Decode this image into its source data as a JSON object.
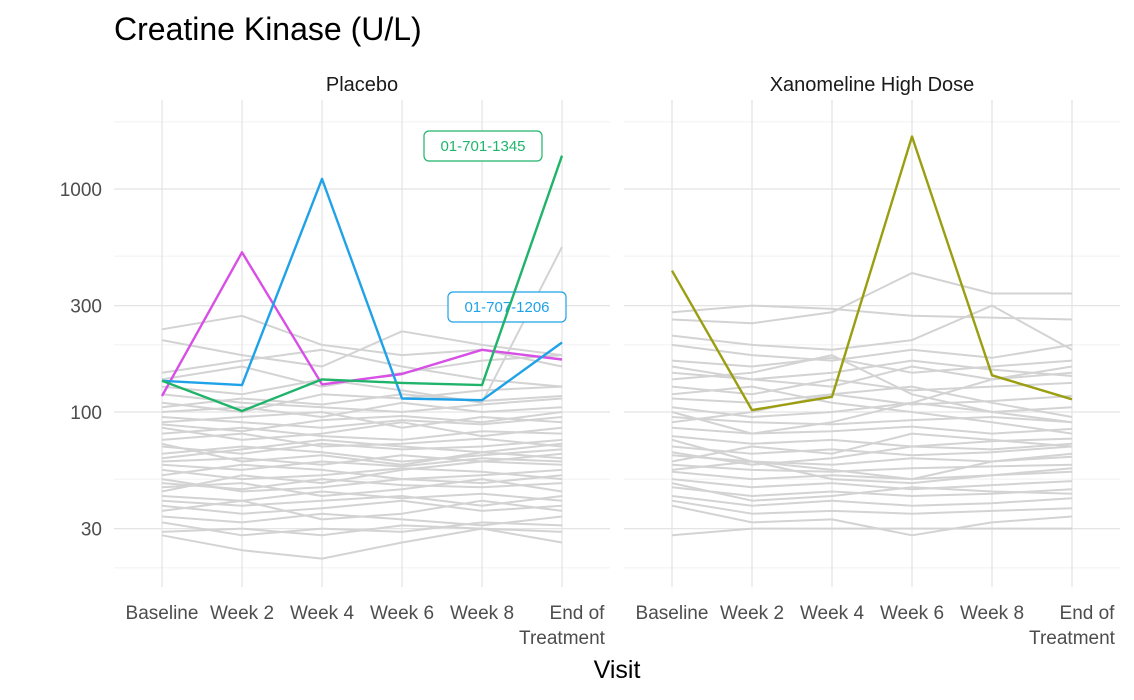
{
  "chart_data": {
    "type": "line",
    "title": "Creatine Kinase (U/L)",
    "xlabel": "Visit",
    "ylabel": "",
    "yscale": "log",
    "ylim": [
      20,
      2000
    ],
    "yticks": [
      30,
      100,
      300,
      1000
    ],
    "ytick_labels": [
      "30",
      "100",
      "300",
      "1000"
    ],
    "categories": [
      "Baseline",
      "Week 2",
      "Week 4",
      "Week 6",
      "Week 8",
      "End of Treatment"
    ],
    "grid": true,
    "panels": [
      {
        "name": "Placebo",
        "background_series": [
          {
            "values": [
              120,
              110,
              105,
              100,
              108,
              115
            ]
          },
          {
            "values": [
              95,
              90,
              85,
              92,
              88,
              95
            ]
          },
          {
            "values": [
              80,
              85,
              78,
              75,
              82,
              80
            ]
          },
          {
            "values": [
              70,
              65,
              72,
              68,
              70,
              75
            ]
          },
          {
            "values": [
              60,
              62,
              58,
              64,
              60,
              58
            ]
          },
          {
            "values": [
              55,
              50,
              52,
              56,
              54,
              50
            ]
          },
          {
            "values": [
              48,
              45,
              50,
              47,
              46,
              48
            ]
          },
          {
            "values": [
              42,
              40,
              44,
              41,
              43,
              40
            ]
          },
          {
            "values": [
              38,
              35,
              37,
              40,
              36,
              38
            ]
          },
          {
            "values": [
              34,
              32,
              35,
              33,
              31,
              34
            ]
          },
          {
            "values": [
              29,
              30,
              28,
              31,
              30,
              29
            ]
          },
          {
            "values": [
              28,
              24,
              22,
              26,
              30,
              26
            ]
          },
          {
            "values": [
              235,
              270,
              200,
              180,
              190,
              160
            ]
          },
          {
            "values": [
              210,
              180,
              160,
              230,
              200,
              180
            ]
          },
          {
            "values": [
              150,
              170,
              190,
              160,
              140,
              130
            ]
          },
          {
            "values": [
              140,
              160,
              130,
              150,
              170,
              180
            ]
          },
          {
            "values": [
              130,
              120,
              140,
              125,
              110,
              550
            ]
          },
          {
            "values": [
              110,
              100,
              120,
              115,
              125,
              130
            ]
          },
          {
            "values": [
              100,
              105,
              95,
              110,
              100,
              105
            ]
          },
          {
            "values": [
              90,
              95,
              100,
              85,
              95,
              90
            ]
          },
          {
            "values": [
              85,
              75,
              80,
              90,
              78,
              85
            ]
          },
          {
            "values": [
              75,
              80,
              70,
              72,
              76,
              70
            ]
          },
          {
            "values": [
              65,
              70,
              66,
              60,
              64,
              68
            ]
          },
          {
            "values": [
              58,
              55,
              60,
              57,
              62,
              60
            ]
          },
          {
            "values": [
              52,
              58,
              55,
              50,
              52,
              55
            ]
          },
          {
            "values": [
              46,
              48,
              42,
              45,
              50,
              44
            ]
          },
          {
            "values": [
              40,
              38,
              40,
              42,
              38,
              42
            ]
          },
          {
            "values": [
              36,
              40,
              33,
              35,
              40,
              36
            ]
          },
          {
            "values": [
              32,
              28,
              30,
              29,
              32,
              31
            ]
          },
          {
            "values": [
              44,
              52,
              48,
              55,
              60,
              65
            ]
          },
          {
            "values": [
              62,
              68,
              75,
              70,
              66,
              72
            ]
          },
          {
            "values": [
              88,
              82,
              92,
              96,
              90,
              100
            ]
          },
          {
            "values": [
              105,
              115,
              108,
              120,
              112,
              118
            ]
          },
          {
            "values": [
              72,
              60,
              64,
              58,
              66,
              62
            ]
          },
          {
            "values": [
              50,
              44,
              46,
              50,
              48,
              52
            ]
          }
        ],
        "highlight_series": [
          {
            "color": "#D84FE6",
            "values": [
              118,
              520,
              133,
              148,
              190,
              172
            ]
          },
          {
            "color": "#1FA2E8",
            "values": [
              138,
              132,
              1110,
              115,
              113,
              205
            ],
            "label": "01-707-1206"
          },
          {
            "color": "#20B46B",
            "values": [
              138,
              101,
              140,
              135,
              132,
              1410
            ],
            "label": "01-701-1345"
          }
        ]
      },
      {
        "name": "Xanomeline High Dose",
        "background_series": [
          {
            "values": [
              280,
              300,
              290,
              270,
              265,
              260
            ]
          },
          {
            "values": [
              260,
              250,
              280,
              420,
              340,
              340
            ]
          },
          {
            "values": [
              220,
              200,
              190,
              210,
              300,
              190
            ]
          },
          {
            "values": [
              200,
              180,
              170,
              190,
              175,
              200
            ]
          },
          {
            "values": [
              170,
              160,
              175,
              150,
              160,
              170
            ]
          },
          {
            "values": [
              150,
              140,
              130,
              160,
              140,
              150
            ]
          },
          {
            "values": [
              130,
              120,
              140,
              125,
              130,
              135
            ]
          },
          {
            "values": [
              115,
              110,
              120,
              108,
              112,
              118
            ]
          },
          {
            "values": [
              105,
              95,
              100,
              110,
              100,
              105
            ]
          },
          {
            "values": [
              95,
              90,
              88,
              92,
              95,
              90
            ]
          },
          {
            "values": [
              85,
              80,
              82,
              86,
              80,
              84
            ]
          },
          {
            "values": [
              78,
              72,
              75,
              70,
              74,
              76
            ]
          },
          {
            "values": [
              70,
              65,
              68,
              64,
              66,
              70
            ]
          },
          {
            "values": [
              64,
              60,
              58,
              62,
              60,
              63
            ]
          },
          {
            "values": [
              58,
              55,
              54,
              56,
              57,
              58
            ]
          },
          {
            "values": [
              54,
              50,
              52,
              50,
              52,
              54
            ]
          },
          {
            "values": [
              50,
              46,
              48,
              45,
              47,
              49
            ]
          },
          {
            "values": [
              46,
              42,
              44,
              42,
              43,
              45
            ]
          },
          {
            "values": [
              42,
              38,
              40,
              38,
              39,
              41
            ]
          },
          {
            "values": [
              40,
              35,
              36,
              35,
              36,
              37
            ]
          },
          {
            "values": [
              38,
              32,
              33,
              28,
              32,
              34
            ]
          },
          {
            "values": [
              28,
              30,
              30,
              30,
              30,
              30
            ]
          },
          {
            "values": [
              120,
              130,
              110,
              100,
              90,
              80
            ]
          },
          {
            "values": [
              90,
              100,
              120,
              130,
              110,
              95
            ]
          },
          {
            "values": [
              60,
              70,
              65,
              80,
              75,
              70
            ]
          },
          {
            "values": [
              75,
              60,
              55,
              50,
              60,
              65
            ]
          },
          {
            "values": [
              140,
              150,
              180,
              120,
              100,
              90
            ]
          },
          {
            "values": [
              100,
              80,
              90,
              110,
              140,
              160
            ]
          },
          {
            "values": [
              66,
              58,
              62,
              70,
              68,
              72
            ]
          },
          {
            "values": [
              55,
              60,
              50,
              48,
              52,
              56
            ]
          },
          {
            "values": [
              48,
              40,
              42,
              46,
              44,
              43
            ]
          },
          {
            "values": [
              160,
              140,
              150,
              170,
              155,
              145
            ]
          }
        ],
        "highlight_series": [
          {
            "color": "#9A9E10",
            "values": [
              430,
              102,
              117,
              1720,
              146,
              114
            ]
          }
        ]
      }
    ]
  }
}
